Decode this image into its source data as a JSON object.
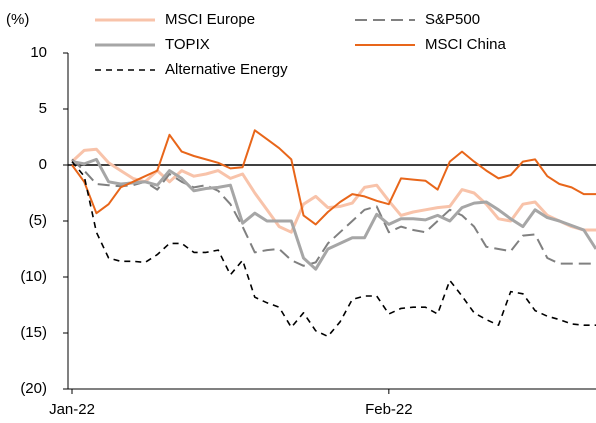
{
  "chart_data": {
    "type": "line",
    "y_label": "(%)",
    "categories": [
      "Jan-22",
      null,
      null,
      null,
      null,
      null,
      null,
      null,
      null,
      null,
      null,
      null,
      null,
      null,
      null,
      null,
      null,
      null,
      null,
      null,
      null,
      null,
      null,
      null,
      null,
      null,
      "Feb-22",
      null,
      null,
      null,
      null,
      null,
      null,
      null,
      null,
      null,
      null,
      null,
      null,
      null,
      null,
      null,
      null,
      null
    ],
    "ylim": [
      -20,
      10
    ],
    "yticks": [
      10,
      5,
      0,
      {
        "value": -5,
        "label": "(5)"
      },
      {
        "value": -10,
        "label": "(10)"
      },
      {
        "value": -15,
        "label": "(15)"
      },
      {
        "value": -20,
        "label": "(20)"
      }
    ],
    "legend": "top",
    "series": [
      {
        "name": "MSCI Europe",
        "color": "#f8c3aa",
        "dash": "solid",
        "width": 3,
        "values": [
          0.3,
          1.3,
          1.4,
          0.2,
          -0.5,
          -1.2,
          -1.5,
          -0.5,
          -1.5,
          -0.5,
          -1,
          -0.8,
          -0.5,
          -1.2,
          -0.8,
          -2.5,
          -4,
          -5.5,
          -6,
          -3.5,
          -2.8,
          -3.8,
          -3.7,
          -3.4,
          -2,
          -1.8,
          -3.2,
          -4.5,
          -4.2,
          -4,
          -3.8,
          -3.7,
          -2.2,
          -2.5,
          -3.5,
          -4.8,
          -5,
          -3.5,
          -3.3,
          -4.5,
          -5,
          -5.5,
          -5.8,
          -5.8
        ]
      },
      {
        "name": "S&P500",
        "color": "#808080",
        "dash": "dashed",
        "width": 2,
        "values": [
          0.5,
          -0.5,
          -1.7,
          -1.8,
          -1.9,
          -1.8,
          -1.5,
          -2.2,
          -0.8,
          -1.5,
          -2,
          -1.8,
          -2.3,
          -3.5,
          -5.5,
          -7.8,
          -7.6,
          -7.5,
          -8.5,
          -9,
          -8.7,
          -7,
          -6,
          -5,
          -4,
          -3.7,
          -6,
          -5.5,
          -5.8,
          -6,
          -5,
          -4,
          -4.5,
          -5.5,
          -7.3,
          -7.5,
          -7.7,
          -6.3,
          -6.2,
          -8.3,
          -8.8,
          -8.8,
          -8.8,
          -8.8
        ]
      },
      {
        "name": "TOPIX",
        "color": "#a6a6a6",
        "dash": "solid",
        "width": 3,
        "values": [
          0.3,
          0.1,
          0.5,
          -1.5,
          -1.7,
          -1.6,
          -1.5,
          -1.8,
          -0.5,
          -1.2,
          -2.3,
          -2.1,
          -2,
          -1.8,
          -5.2,
          -4.3,
          -5,
          -5,
          -5,
          -8.3,
          -9.3,
          -7.5,
          -7,
          -6.5,
          -6.5,
          -4.4,
          -5.3,
          -4.8,
          -4.8,
          -4.9,
          -4.5,
          -5,
          -3.8,
          -3.4,
          -3.3,
          -4,
          -4.8,
          -5.5,
          -4,
          -4.7,
          -5,
          -5.4,
          -5.8,
          -7.5
        ]
      },
      {
        "name": "MSCI China",
        "color": "#e8661a",
        "dash": "solid",
        "width": 2,
        "values": [
          0,
          -1.5,
          -4.3,
          -3.5,
          -2,
          -1.5,
          -1,
          -0.5,
          2.7,
          1.2,
          0.8,
          0.5,
          0.2,
          -0.3,
          -0.2,
          3.1,
          2.3,
          1.5,
          0.5,
          -4.5,
          -5.3,
          -4.2,
          -3.3,
          -2.6,
          -2.8,
          -3.2,
          -3.5,
          -1.2,
          -1.3,
          -1.4,
          -2.2,
          0.3,
          1.2,
          0.3,
          -0.5,
          -1.2,
          -0.9,
          0.3,
          0.5,
          -1,
          -1.7,
          -2,
          -2.6,
          -2.6
        ]
      },
      {
        "name": "Alternative Energy",
        "color": "#000000",
        "dash": "dashed",
        "width": 1.6,
        "values": [
          0.3,
          -1,
          -6,
          -8.3,
          -8.6,
          -8.6,
          -8.7,
          -8,
          -7,
          -7,
          -7.8,
          -7.8,
          -7.6,
          -9.8,
          -8.5,
          -11.8,
          -12.3,
          -12.7,
          -14.5,
          -13.2,
          -14.8,
          -15.3,
          -14,
          -12,
          -11.7,
          -11.7,
          -13.3,
          -12.8,
          -12.7,
          -12.7,
          -13.3,
          -10.3,
          -11.7,
          -13.2,
          -13.8,
          -14.3,
          -11.3,
          -11.5,
          -13,
          -13.5,
          -13.8,
          -14.2,
          -14.3,
          -14.3
        ]
      }
    ]
  }
}
